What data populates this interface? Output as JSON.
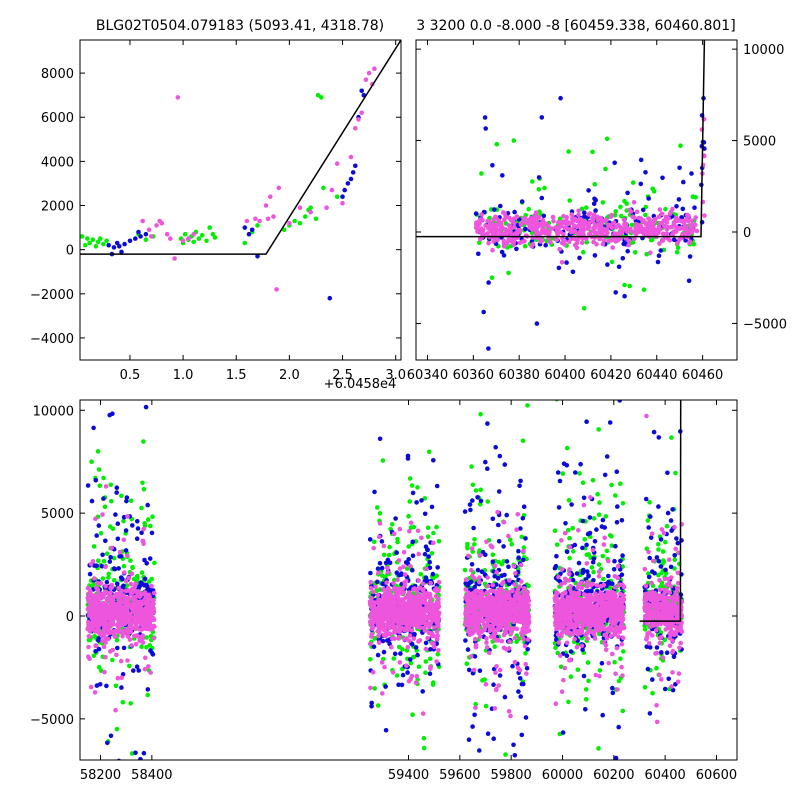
{
  "colors": {
    "green": "#00ee00",
    "blue": "#0b0bd9",
    "pink": "#ee55dd",
    "model": "#000000"
  },
  "chart_data": [
    {
      "type": "scatter",
      "panel": "top-left",
      "title": "BLG02T0504.079183 (5093.41, 4318.78)",
      "x_offset_label": "+6.0458e4",
      "xlim": [
        0.03,
        3.05
      ],
      "ylim": [
        -5000,
        9500
      ],
      "x_ticks": [
        "0.5",
        "1.0",
        "1.5",
        "2.0",
        "2.5",
        "3.0"
      ],
      "x_tick_values": [
        0.5,
        1.0,
        1.5,
        2.0,
        2.5,
        3.0
      ],
      "y_ticks": [
        "−4000",
        "−2000",
        "0",
        "2000",
        "4000",
        "6000",
        "8000"
      ],
      "y_tick_values": [
        -4000,
        -2000,
        0,
        2000,
        4000,
        6000,
        8000
      ],
      "model_line": {
        "x": [
          0.03,
          1.78,
          3.05
        ],
        "y": [
          -200,
          -200,
          9500
        ]
      },
      "series": [
        {
          "color": "green",
          "points": [
            [
              0.05,
              600
            ],
            [
              0.08,
              200
            ],
            [
              0.1,
              500
            ],
            [
              0.12,
              300
            ],
            [
              0.15,
              450
            ],
            [
              0.18,
              150
            ],
            [
              0.2,
              350
            ],
            [
              0.22,
              500
            ],
            [
              0.25,
              250
            ],
            [
              0.28,
              400
            ],
            [
              0.58,
              700
            ],
            [
              0.65,
              450
            ],
            [
              0.72,
              600
            ],
            [
              0.98,
              500
            ],
            [
              1.0,
              300
            ],
            [
              1.02,
              700
            ],
            [
              1.05,
              450
            ],
            [
              1.08,
              600
            ],
            [
              1.1,
              350
            ],
            [
              1.12,
              800
            ],
            [
              1.15,
              500
            ],
            [
              1.18,
              650
            ],
            [
              1.22,
              400
            ],
            [
              1.25,
              1000
            ],
            [
              1.28,
              700
            ],
            [
              1.3,
              550
            ],
            [
              1.58,
              300
            ],
            [
              1.65,
              800
            ],
            [
              1.7,
              1100
            ],
            [
              1.95,
              900
            ],
            [
              2.0,
              1100
            ],
            [
              2.05,
              1300
            ],
            [
              2.1,
              1200
            ],
            [
              2.15,
              1500
            ],
            [
              2.18,
              1800
            ],
            [
              2.2,
              1900
            ],
            [
              2.25,
              1400
            ],
            [
              2.27,
              7000
            ],
            [
              2.3,
              6900
            ],
            [
              2.32,
              2800
            ],
            [
              2.45,
              2400
            ]
          ]
        },
        {
          "color": "blue",
          "points": [
            [
              0.3,
              200
            ],
            [
              0.33,
              -200
            ],
            [
              0.35,
              100
            ],
            [
              0.38,
              300
            ],
            [
              0.4,
              150
            ],
            [
              0.42,
              -100
            ],
            [
              0.45,
              250
            ],
            [
              0.5,
              400
            ],
            [
              0.55,
              500
            ],
            [
              0.58,
              800
            ],
            [
              0.6,
              600
            ],
            [
              0.65,
              700
            ],
            [
              1.58,
              1000
            ],
            [
              1.62,
              700
            ],
            [
              1.65,
              900
            ],
            [
              1.7,
              -300
            ],
            [
              2.38,
              -2200
            ],
            [
              2.5,
              2400
            ],
            [
              2.52,
              2700
            ],
            [
              2.55,
              3000
            ],
            [
              2.58,
              3200
            ],
            [
              2.6,
              3500
            ],
            [
              2.62,
              3800
            ],
            [
              2.65,
              6000
            ],
            [
              2.68,
              7200
            ],
            [
              2.7,
              7000
            ]
          ]
        },
        {
          "color": "pink",
          "points": [
            [
              0.62,
              1300
            ],
            [
              0.68,
              900
            ],
            [
              0.7,
              600
            ],
            [
              0.75,
              1100
            ],
            [
              0.78,
              1300
            ],
            [
              0.8,
              1200
            ],
            [
              0.85,
              700
            ],
            [
              0.88,
              500
            ],
            [
              0.92,
              -400
            ],
            [
              0.95,
              6900
            ],
            [
              1.0,
              400
            ],
            [
              1.05,
              500
            ],
            [
              1.1,
              700
            ],
            [
              1.6,
              1300
            ],
            [
              1.68,
              1400
            ],
            [
              1.72,
              1300
            ],
            [
              1.78,
              2000
            ],
            [
              1.8,
              1400
            ],
            [
              1.82,
              2400
            ],
            [
              1.85,
              1500
            ],
            [
              1.88,
              -1800
            ],
            [
              1.9,
              2800
            ],
            [
              2.0,
              1200
            ],
            [
              2.1,
              1900
            ],
            [
              2.2,
              1700
            ],
            [
              2.35,
              1900
            ],
            [
              2.4,
              2700
            ],
            [
              2.45,
              3900
            ],
            [
              2.5,
              2100
            ],
            [
              2.58,
              4200
            ],
            [
              2.62,
              5500
            ],
            [
              2.65,
              5900
            ],
            [
              2.68,
              6200
            ],
            [
              2.72,
              7700
            ],
            [
              2.75,
              8000
            ],
            [
              2.78,
              7500
            ],
            [
              2.8,
              8200
            ]
          ]
        }
      ]
    },
    {
      "type": "scatter",
      "panel": "top-right",
      "title": "3 3200 0.0 -8.000 -8 [60459.338, 60460.801]",
      "xlim": [
        60335,
        60475
      ],
      "ylim": [
        -7000,
        10500
      ],
      "x_ticks": [
        "60340",
        "60360",
        "60380",
        "60400",
        "60420",
        "60440",
        "60460"
      ],
      "x_tick_values": [
        60340,
        60360,
        60380,
        60400,
        60420,
        60440,
        60460
      ],
      "y_ticks": [
        "−5000",
        "0",
        "5000",
        "10000"
      ],
      "y_tick_values": [
        -5000,
        0,
        5000,
        10000
      ],
      "y_axis_side": "right",
      "model_line": {
        "x": [
          60335,
          60459.3,
          60460.8,
          60461
        ],
        "y": [
          -250,
          -250,
          10500,
          10500
        ]
      }
    },
    {
      "type": "scatter",
      "panel": "bottom",
      "xlim": [
        58120,
        60680
      ],
      "ylim": [
        -7000,
        10500
      ],
      "x_ticks": [
        "58200",
        "58400",
        "59400",
        "59600",
        "59800",
        "60000",
        "60200",
        "60400",
        "60600"
      ],
      "x_tick_values": [
        58200,
        58400,
        59400,
        59600,
        59800,
        60000,
        60200,
        60400,
        60600
      ],
      "y_ticks": [
        "−5000",
        "0",
        "5000",
        "10000"
      ],
      "y_tick_values": [
        -5000,
        0,
        5000,
        10000
      ],
      "season_ranges": [
        [
          58150,
          58410
        ],
        [
          59250,
          59520
        ],
        [
          59620,
          59870
        ],
        [
          59970,
          60240
        ],
        [
          60320,
          60465
        ]
      ],
      "model_line": {
        "x": [
          60300,
          60459.3,
          60460.8,
          60462
        ],
        "y": [
          -250,
          -250,
          10500,
          10500
        ]
      }
    }
  ]
}
